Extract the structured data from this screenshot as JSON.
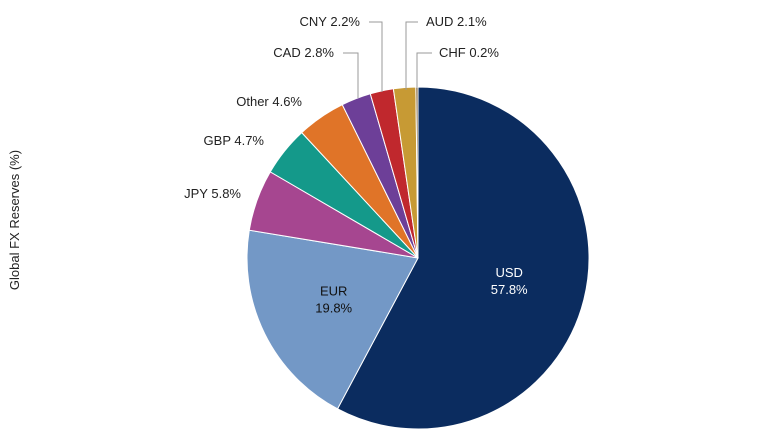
{
  "chart_data": {
    "type": "pie",
    "ylabel": "Global FX Reserves (%)",
    "start_angle_deg": 0,
    "direction": "clockwise",
    "slices": [
      {
        "label": "USD",
        "value": 57.8,
        "display": "57.8%",
        "color": "#0b2c5f",
        "label_pos": "inside"
      },
      {
        "label": "EUR",
        "value": 19.8,
        "display": "19.8%",
        "color": "#7398c6",
        "label_pos": "inside"
      },
      {
        "label": "JPY",
        "value": 5.8,
        "display": "5.8%",
        "color": "#a64690",
        "label_pos": "outside"
      },
      {
        "label": "GBP",
        "value": 4.7,
        "display": "4.7%",
        "color": "#14998a",
        "label_pos": "outside"
      },
      {
        "label": "Other",
        "value": 4.6,
        "display": "4.6%",
        "color": "#e07428",
        "label_pos": "outside"
      },
      {
        "label": "CAD",
        "value": 2.8,
        "display": "2.8%",
        "color": "#6d3f98",
        "label_pos": "leader"
      },
      {
        "label": "CNY",
        "value": 2.2,
        "display": "2.2%",
        "color": "#c0282d",
        "label_pos": "leader"
      },
      {
        "label": "AUD",
        "value": 2.1,
        "display": "2.1%",
        "color": "#c79a34",
        "label_pos": "leader"
      },
      {
        "label": "CHF",
        "value": 0.2,
        "display": "0.2%",
        "color": "#7a5a2a",
        "label_pos": "leader"
      }
    ]
  }
}
